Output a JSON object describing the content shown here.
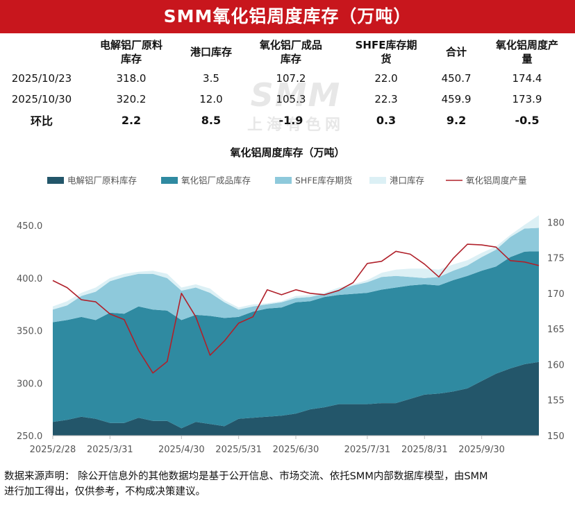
{
  "banner": {
    "title": "SMM氧化铝周度库存（万吨）"
  },
  "summary_table": {
    "headers": [
      "",
      "电解铝厂原料库存",
      "港口库存",
      "氧化铝厂成品库存",
      "SHFE库存期货",
      "合计",
      "氧化铝周度产量"
    ],
    "header_lines": [
      [
        "",
        ""
      ],
      [
        "电解铝厂原料",
        "库存"
      ],
      [
        "港口库存",
        ""
      ],
      [
        "氧化铝厂成品",
        "库存"
      ],
      [
        "SHFE库存期",
        "货"
      ],
      [
        "合计",
        ""
      ],
      [
        "氧化铝周度产",
        "量"
      ]
    ],
    "rows": [
      [
        "2025/10/23",
        "318.0",
        "3.5",
        "107.2",
        "22.0",
        "450.7",
        "174.4"
      ],
      [
        "2025/10/30",
        "320.2",
        "12.0",
        "105.3",
        "22.3",
        "459.9",
        "173.9"
      ],
      [
        "环比",
        "2.2",
        "8.5",
        "-1.9",
        "0.3",
        "9.2",
        "-0.5"
      ]
    ]
  },
  "watermark": {
    "big": "SMM",
    "small": "上海有色网"
  },
  "chart_data": {
    "type": "area",
    "title": "氧化铝周度库存（万吨）",
    "x_tick_labels": [
      "2025/2/28",
      "2025/3/31",
      "2025/4/30",
      "2025/5/31",
      "2025/6/30",
      "2025/7/31",
      "2025/8/31",
      "2025/9/30"
    ],
    "x_tick_week_index": [
      0,
      4,
      9,
      13,
      17,
      22,
      26,
      30
    ],
    "y_left": {
      "range": [
        250,
        460
      ],
      "ticks": [
        250,
        300,
        350,
        400,
        450
      ],
      "tick_labels": [
        "250.0",
        "300.0",
        "350.0",
        "400.0",
        "450.0"
      ]
    },
    "y_right": {
      "range": [
        150,
        181
      ],
      "ticks": [
        150,
        155,
        160,
        165,
        170,
        175,
        180
      ],
      "tick_labels": [
        "150",
        "155",
        "160",
        "165",
        "170",
        "175",
        "180"
      ]
    },
    "stack_order": [
      "电解铝厂原料库存",
      "氧化铝厂成品库存",
      "SHFE库存期货",
      "港口库存"
    ],
    "series": [
      {
        "name": "电解铝厂原料库存",
        "kind": "area",
        "color": "#23566a",
        "values": [
          263,
          265,
          268,
          266,
          262,
          262,
          267,
          264,
          264,
          257,
          263,
          261,
          259,
          266,
          267,
          268,
          269,
          271,
          275,
          277,
          280,
          280,
          280,
          281,
          281,
          285,
          289,
          290,
          292,
          295,
          302,
          309,
          314,
          318.0,
          320.2
        ]
      },
      {
        "name": "氧化铝厂成品库存",
        "kind": "area",
        "color": "#2f8aa1",
        "values": [
          95,
          95,
          95,
          94,
          105,
          104,
          106,
          106,
          105,
          103,
          102,
          103,
          103,
          97,
          101,
          103,
          103,
          106,
          103,
          105,
          104,
          105,
          106,
          108,
          110,
          108,
          105,
          103,
          106,
          107,
          105,
          102,
          106,
          107.2,
          105.3
        ]
      },
      {
        "name": "SHFE库存期货",
        "kind": "area",
        "color": "#8ec9db",
        "values": [
          12,
          14,
          20,
          27,
          30,
          35,
          31,
          34,
          31,
          28,
          26,
          22,
          15,
          7,
          5,
          4,
          5,
          4,
          4,
          3,
          5,
          8,
          10,
          12,
          11,
          8,
          6,
          8,
          9,
          10,
          13,
          16,
          19,
          22.0,
          22.3
        ]
      },
      {
        "name": "港口库存",
        "kind": "area",
        "color": "#dcf0f5",
        "values": [
          3,
          4,
          3,
          4,
          3,
          3,
          2,
          3,
          4,
          3,
          3,
          4,
          2,
          2,
          2,
          1,
          1,
          2,
          2,
          1,
          2,
          1,
          2,
          4,
          6,
          8,
          9,
          7,
          6,
          5,
          4,
          3,
          2,
          3.5,
          12.0
        ]
      },
      {
        "name": "氧化铝周度产量",
        "kind": "line",
        "axis": "right",
        "color": "#b0202a",
        "values": [
          171.8,
          170.8,
          169.1,
          168.8,
          167.1,
          166.3,
          162.0,
          158.8,
          160.4,
          170.0,
          166.7,
          161.3,
          163.3,
          165.8,
          166.7,
          170.5,
          169.8,
          170.5,
          170.0,
          169.8,
          170.4,
          171.5,
          174.2,
          174.5,
          175.9,
          175.5,
          174.1,
          172.3,
          174.9,
          176.9,
          176.8,
          176.5,
          174.6,
          174.4,
          173.9
        ]
      }
    ],
    "legend": {
      "position": "top",
      "items": [
        {
          "label": "电解铝厂原料库存",
          "color": "#23566a",
          "shape": "rect"
        },
        {
          "label": "氧化铝厂成品库存",
          "color": "#2f8aa1",
          "shape": "rect"
        },
        {
          "label": "SHFE库存期货",
          "color": "#8ec9db",
          "shape": "rect"
        },
        {
          "label": "港口库存",
          "color": "#dcf0f5",
          "shape": "rect"
        },
        {
          "label": "氧化铝周度产量",
          "color": "#b0202a",
          "shape": "line"
        }
      ]
    },
    "grid": false
  },
  "footer": {
    "line1": "数据来源声明：  除公开信息外的其他数据均是基于公开信息、市场交流、依托SMM内部数据库模型，由SMM",
    "line2": "进行加工得出，仅供参考，不构成决策建议。"
  }
}
